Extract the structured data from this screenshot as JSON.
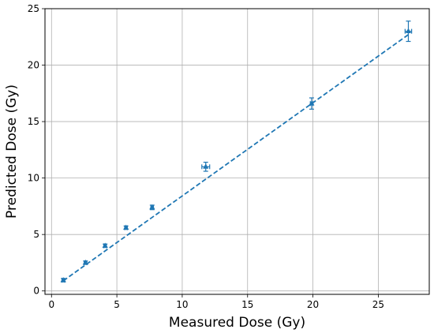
{
  "chart_data": {
    "type": "scatter",
    "title": "",
    "xlabel": "Measured Dose (Gy)",
    "ylabel": "Predicted Dose (Gy)",
    "xlim": [
      -0.5,
      28.9
    ],
    "ylim": [
      -0.3,
      25
    ],
    "xticks": [
      0,
      5,
      10,
      15,
      20,
      25
    ],
    "yticks": [
      0,
      5,
      10,
      15,
      20,
      25
    ],
    "grid": true,
    "colors": {
      "series": "#1f77b4",
      "grid": "#b0b0b0"
    },
    "points": [
      {
        "x": 0.9,
        "y": 0.95,
        "yerr": 0.15,
        "xerr": 0.1
      },
      {
        "x": 2.6,
        "y": 2.5,
        "yerr": 0.15,
        "xerr": 0.1
      },
      {
        "x": 4.1,
        "y": 4.0,
        "yerr": 0.15,
        "xerr": 0.1
      },
      {
        "x": 5.7,
        "y": 5.6,
        "yerr": 0.15,
        "xerr": 0.1
      },
      {
        "x": 7.7,
        "y": 7.4,
        "yerr": 0.2,
        "xerr": 0.1
      },
      {
        "x": 11.8,
        "y": 11.0,
        "yerr": 0.4,
        "xerr": 0.3
      },
      {
        "x": 19.9,
        "y": 16.6,
        "yerr": 0.5,
        "xerr": 0.1
      },
      {
        "x": 27.3,
        "y": 23.0,
        "yerr": 0.9,
        "xerr": 0.25
      }
    ],
    "fit_line": {
      "x": [
        0.9,
        27.3
      ],
      "y": [
        0.9,
        22.7
      ],
      "style": "dashed"
    }
  }
}
